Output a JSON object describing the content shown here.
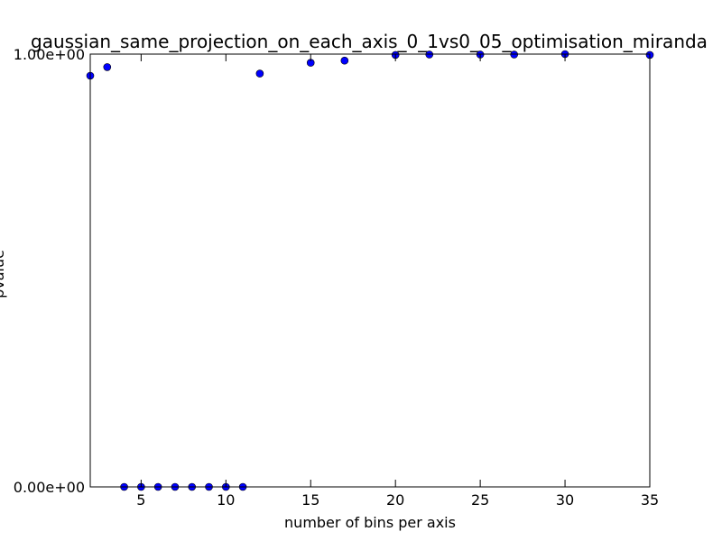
{
  "chart_data": {
    "type": "scatter",
    "title": "gaussian_same_projection_on_each_axis_0_1vs0_05_optimisation_miranda",
    "xlabel": "number of bins per axis",
    "ylabel": "pvalue",
    "xlim": [
      2,
      35
    ],
    "ylim": [
      0,
      1
    ],
    "grid": false,
    "marker_color": "#0000ff",
    "x_ticks": [
      5,
      10,
      15,
      20,
      25,
      30,
      35
    ],
    "y_ticks": [
      {
        "value": 0,
        "label": "0.00e+00"
      },
      {
        "value": 1,
        "label": "1.00e+00"
      }
    ],
    "points": [
      {
        "x": 2,
        "y": 0.95
      },
      {
        "x": 3,
        "y": 0.97
      },
      {
        "x": 4,
        "y": 0
      },
      {
        "x": 5,
        "y": 0
      },
      {
        "x": 6,
        "y": 0
      },
      {
        "x": 7,
        "y": 0
      },
      {
        "x": 8,
        "y": 0
      },
      {
        "x": 9,
        "y": 0
      },
      {
        "x": 10,
        "y": 0
      },
      {
        "x": 11,
        "y": 0
      },
      {
        "x": 12,
        "y": 0.955
      },
      {
        "x": 15,
        "y": 0.98
      },
      {
        "x": 17,
        "y": 0.985
      },
      {
        "x": 20,
        "y": 0.998
      },
      {
        "x": 22,
        "y": 0.999
      },
      {
        "x": 25,
        "y": 0.999
      },
      {
        "x": 27,
        "y": 0.999
      },
      {
        "x": 30,
        "y": 1.0
      },
      {
        "x": 35,
        "y": 0.998
      }
    ]
  }
}
